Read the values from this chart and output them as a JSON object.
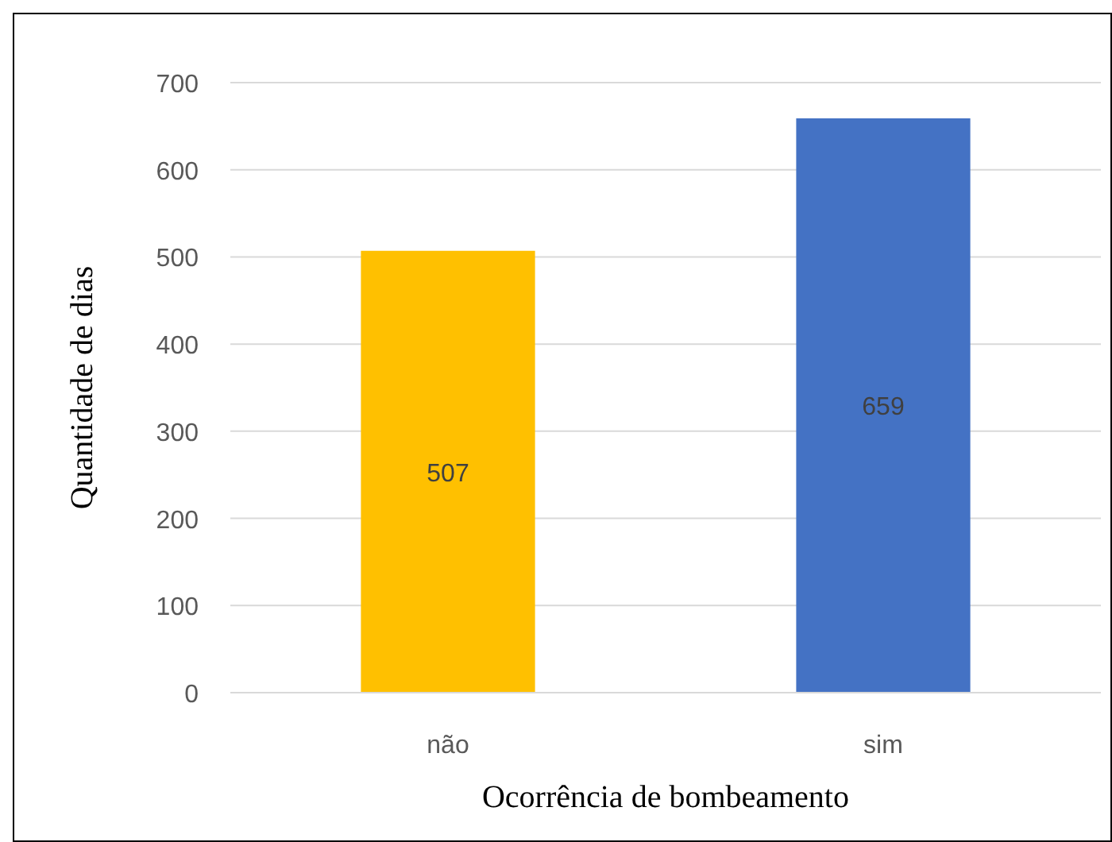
{
  "chart_data": {
    "type": "bar",
    "xlabel": "Ocorrência de bombeamento",
    "ylabel": "Quantidade de dias",
    "categories": [
      "não",
      "sim"
    ],
    "values": [
      507,
      659
    ],
    "colors": [
      "#ffc000",
      "#4472c4"
    ],
    "ylim": [
      0,
      700
    ],
    "yticks": [
      0,
      100,
      200,
      300,
      400,
      500,
      600,
      700
    ],
    "grid": "y",
    "data_labels": true
  }
}
